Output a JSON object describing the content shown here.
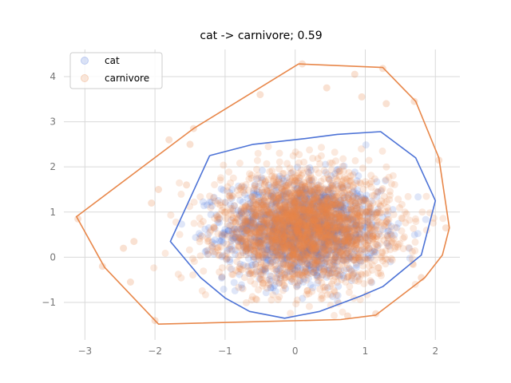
{
  "chart_data": {
    "type": "scatter",
    "title": "cat -> carnivore; 0.59",
    "xlabel": "",
    "ylabel": "",
    "xlim": [
      -3.3,
      2.35
    ],
    "ylim": [
      -1.83,
      4.6
    ],
    "xticks": [
      -3,
      -2,
      -1,
      0,
      1,
      2
    ],
    "yticks": [
      -1,
      0,
      1,
      2,
      3,
      4
    ],
    "xtick_labels": [
      "−3",
      "−2",
      "−1",
      "0",
      "1",
      "2"
    ],
    "ytick_labels": [
      "−1",
      "0",
      "1",
      "2",
      "3",
      "4"
    ],
    "grid": true,
    "legend_position": "upper-left",
    "series": [
      {
        "name": "cat",
        "color": "#4c72d6",
        "cloud": {
          "center": [
            0.1,
            0.6
          ],
          "spread": [
            0.55,
            0.55
          ],
          "count": 1500
        },
        "hull": [
          [
            -1.22,
            2.25
          ],
          [
            -0.6,
            2.5
          ],
          [
            0.1,
            2.62
          ],
          [
            0.6,
            2.72
          ],
          [
            1.22,
            2.78
          ],
          [
            1.72,
            2.2
          ],
          [
            2.0,
            1.25
          ],
          [
            1.8,
            0.05
          ],
          [
            1.25,
            -0.65
          ],
          [
            0.95,
            -0.85
          ],
          [
            0.35,
            -1.2
          ],
          [
            -0.15,
            -1.35
          ],
          [
            -0.65,
            -1.2
          ],
          [
            -1.0,
            -0.9
          ],
          [
            -1.35,
            -0.45
          ],
          [
            -1.78,
            0.35
          ],
          [
            -1.22,
            2.25
          ]
        ]
      },
      {
        "name": "carnivore",
        "color": "#e8874a",
        "cloud": {
          "center": [
            0.15,
            0.65
          ],
          "spread": [
            0.6,
            0.6
          ],
          "count": 2500
        },
        "hull": [
          [
            0.05,
            4.28
          ],
          [
            1.25,
            4.2
          ],
          [
            1.72,
            3.45
          ],
          [
            2.05,
            2.2
          ],
          [
            2.2,
            0.65
          ],
          [
            2.1,
            0.05
          ],
          [
            1.85,
            -0.45
          ],
          [
            1.15,
            -1.28
          ],
          [
            0.65,
            -1.38
          ],
          [
            -1.95,
            -1.48
          ],
          [
            -2.72,
            -0.22
          ],
          [
            -3.12,
            0.9
          ],
          [
            -1.45,
            2.85
          ],
          [
            0.05,
            4.28
          ]
        ]
      }
    ],
    "outliers": [
      [
        -3.1,
        0.85
      ],
      [
        -2.75,
        -0.2
      ],
      [
        -2.45,
        0.2
      ],
      [
        -2.35,
        -0.55
      ],
      [
        -2.3,
        0.35
      ],
      [
        -2.0,
        -1.4
      ],
      [
        -2.05,
        1.2
      ],
      [
        -1.95,
        1.5
      ],
      [
        -1.5,
        2.5
      ],
      [
        -1.45,
        2.85
      ],
      [
        0.1,
        4.28
      ],
      [
        1.25,
        4.18
      ],
      [
        0.85,
        4.05
      ],
      [
        0.95,
        3.55
      ],
      [
        1.7,
        3.45
      ],
      [
        2.05,
        2.15
      ],
      [
        2.15,
        0.65
      ],
      [
        1.8,
        -0.45
      ],
      [
        0.75,
        -1.3
      ],
      [
        1.15,
        -1.25
      ],
      [
        -1.55,
        1.6
      ],
      [
        -1.8,
        2.6
      ],
      [
        1.3,
        3.4
      ],
      [
        -0.5,
        3.6
      ],
      [
        0.45,
        3.75
      ]
    ]
  }
}
